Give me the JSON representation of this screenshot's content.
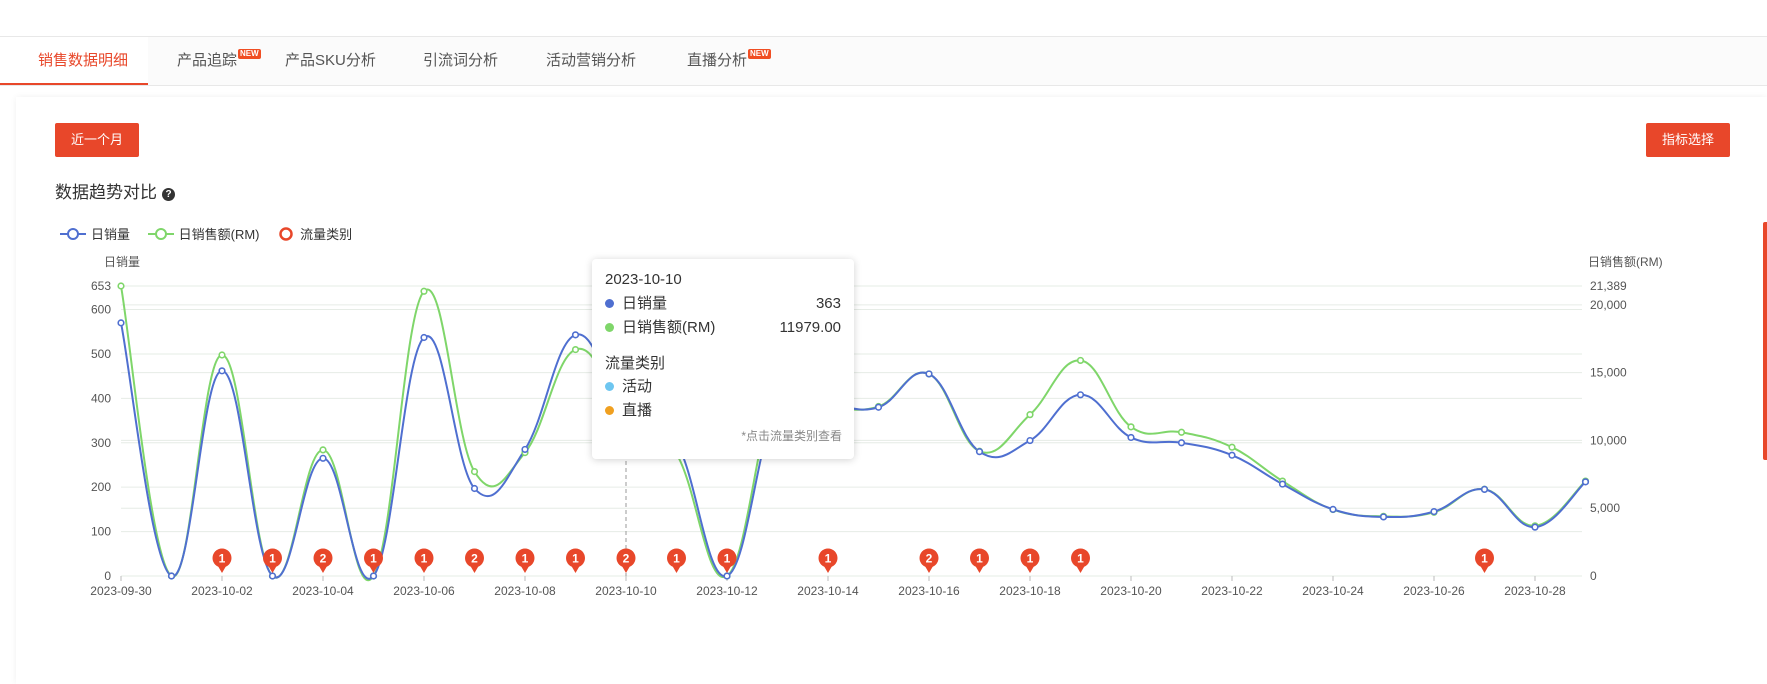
{
  "tabs": [
    {
      "label": "销售数据明细",
      "active": true,
      "badge": ""
    },
    {
      "label": "产品追踪",
      "active": false,
      "badge": "NEW"
    },
    {
      "label": "产品SKU分析",
      "active": false,
      "badge": ""
    },
    {
      "label": "引流词分析",
      "active": false,
      "badge": ""
    },
    {
      "label": "活动营销分析",
      "active": false,
      "badge": ""
    },
    {
      "label": "直播分析",
      "active": false,
      "badge": "NEW"
    }
  ],
  "toolbar": {
    "range_label": "近一个月",
    "metric_label": "指标选择"
  },
  "section": {
    "title": "数据趋势对比",
    "help_icon": "question-circle-icon"
  },
  "legend": [
    {
      "label": "日销量",
      "color": "#4f6fd0"
    },
    {
      "label": "日销售额(RM)",
      "color": "#7fd66a"
    },
    {
      "label": "流量类别",
      "color": "#e8472a"
    }
  ],
  "tooltip": {
    "date": "2023-10-10",
    "rows": [
      {
        "label": "日销量",
        "value": "363",
        "color": "#4f6fd0"
      },
      {
        "label": "日销售额(RM)",
        "value": "11979.00",
        "color": "#7fd66a"
      }
    ],
    "category_title": "流量类别",
    "categories": [
      {
        "label": "活动",
        "color": "#6ec6f0"
      },
      {
        "label": "直播",
        "color": "#f0a020"
      }
    ],
    "note": "*点击流量类别查看"
  },
  "chart_data": {
    "type": "line",
    "x": [
      "2023-09-30",
      "2023-10-01",
      "2023-10-02",
      "2023-10-03",
      "2023-10-04",
      "2023-10-05",
      "2023-10-06",
      "2023-10-07",
      "2023-10-08",
      "2023-10-09",
      "2023-10-10",
      "2023-10-11",
      "2023-10-12",
      "2023-10-13",
      "2023-10-14",
      "2023-10-15",
      "2023-10-16",
      "2023-10-17",
      "2023-10-18",
      "2023-10-19",
      "2023-10-20",
      "2023-10-21",
      "2023-10-22",
      "2023-10-23",
      "2023-10-24",
      "2023-10-25",
      "2023-10-26",
      "2023-10-27",
      "2023-10-28",
      "2023-10-29"
    ],
    "x_tick_labels": [
      "2023-09-30",
      "2023-10-02",
      "2023-10-04",
      "2023-10-06",
      "2023-10-08",
      "2023-10-10",
      "2023-10-12",
      "2023-10-14",
      "2023-10-16",
      "2023-10-18",
      "2023-10-20",
      "2023-10-22",
      "2023-10-24",
      "2023-10-26",
      "2023-10-28"
    ],
    "y_left_label": "日销量",
    "y_right_label": "日销售额(RM)",
    "y_left_ticks": [
      0,
      100,
      200,
      300,
      400,
      500,
      600,
      653
    ],
    "y_right_ticks": [
      "0",
      "5,000",
      "10,000",
      "15,000",
      "20,000",
      "21,389"
    ],
    "y_left_range": [
      0,
      653
    ],
    "y_right_range": [
      0,
      21389
    ],
    "series": [
      {
        "name": "日销量",
        "axis": "left",
        "color": "#4f6fd0",
        "values": [
          570,
          0,
          462,
          0,
          265,
          0,
          537,
          197,
          285,
          543,
          363,
          300,
          0,
          385,
          385,
          380,
          455,
          280,
          305,
          408,
          312,
          300,
          272,
          207,
          150,
          133,
          145,
          195,
          110,
          212
        ]
      },
      {
        "name": "日销售额(RM)",
        "axis": "right",
        "color": "#7fd66a",
        "values": [
          21389,
          0,
          16300,
          0,
          9300,
          0,
          21000,
          7700,
          9100,
          16700,
          11979,
          9000,
          0,
          13800,
          12600,
          12500,
          14900,
          9200,
          11900,
          15900,
          11000,
          10600,
          9500,
          7000,
          4900,
          4400,
          4700,
          6400,
          3700,
          7000
        ]
      }
    ],
    "flow_markers": [
      {
        "x": "2023-10-02",
        "count": "1"
      },
      {
        "x": "2023-10-03",
        "count": "1"
      },
      {
        "x": "2023-10-04",
        "count": "2"
      },
      {
        "x": "2023-10-05",
        "count": "1"
      },
      {
        "x": "2023-10-06",
        "count": "1"
      },
      {
        "x": "2023-10-07",
        "count": "2"
      },
      {
        "x": "2023-10-08",
        "count": "1"
      },
      {
        "x": "2023-10-09",
        "count": "1"
      },
      {
        "x": "2023-10-10",
        "count": "2"
      },
      {
        "x": "2023-10-11",
        "count": "1"
      },
      {
        "x": "2023-10-12",
        "count": "1"
      },
      {
        "x": "2023-10-14",
        "count": "1"
      },
      {
        "x": "2023-10-16",
        "count": "2"
      },
      {
        "x": "2023-10-17",
        "count": "1"
      },
      {
        "x": "2023-10-18",
        "count": "1"
      },
      {
        "x": "2023-10-19",
        "count": "1"
      },
      {
        "x": "2023-10-27",
        "count": "1"
      }
    ],
    "highlight_x": "2023-10-10",
    "grid": true
  }
}
